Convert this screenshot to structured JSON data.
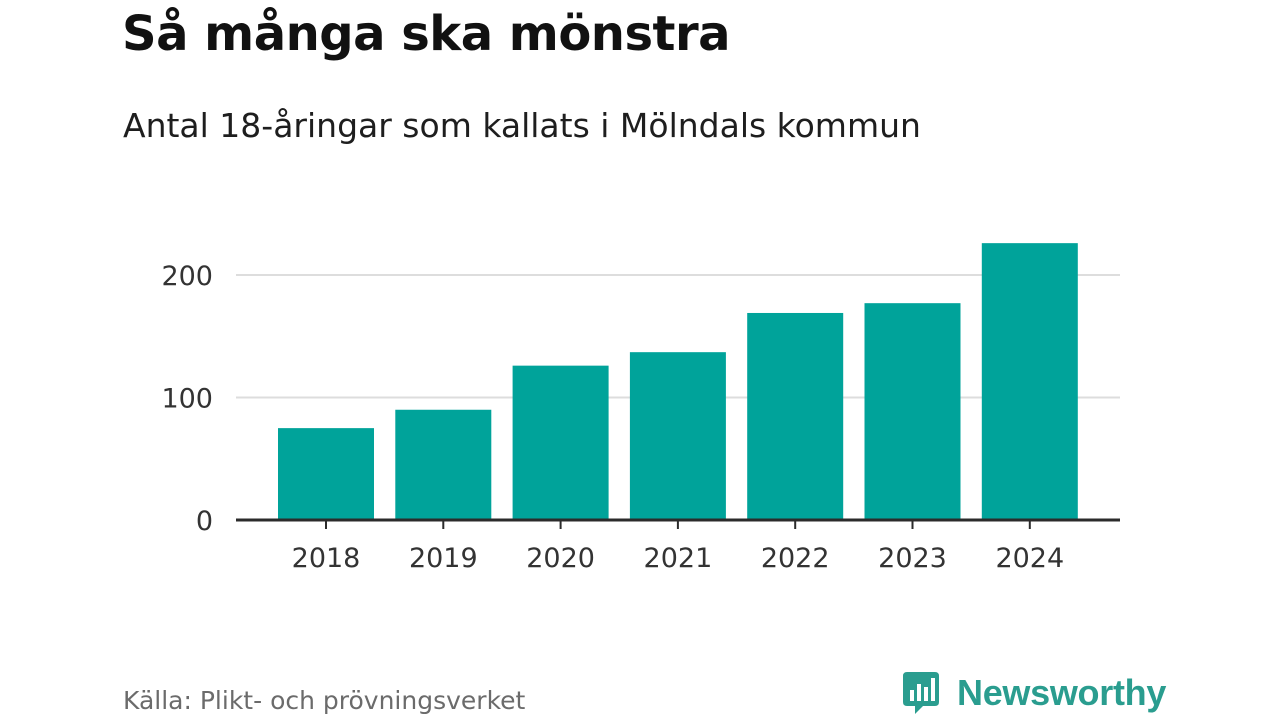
{
  "header": {
    "title": "Så många ska mönstra",
    "subtitle": "Antal 18-åringar som kallats i Mölndals kommun"
  },
  "footer": {
    "source": "Källa: Plikt- och prövningsverket",
    "brand": "Newsworthy",
    "brand_icon": "bar-chart-speech-bubble-icon"
  },
  "colors": {
    "bar": "#00a39a",
    "grid": "#dddddd",
    "axis": "#2b2b2b",
    "brand": "#2a9d8f"
  },
  "chart_data": {
    "type": "bar",
    "title": "Så många ska mönstra",
    "subtitle": "Antal 18-åringar som kallats i Mölndals kommun",
    "categories": [
      "2018",
      "2019",
      "2020",
      "2021",
      "2022",
      "2023",
      "2024"
    ],
    "values": [
      75,
      90,
      126,
      137,
      169,
      177,
      226
    ],
    "xlabel": "",
    "ylabel": "",
    "ylim": [
      0,
      226
    ],
    "yticks": [
      0,
      100,
      200
    ],
    "grid": true,
    "legend": "none"
  }
}
